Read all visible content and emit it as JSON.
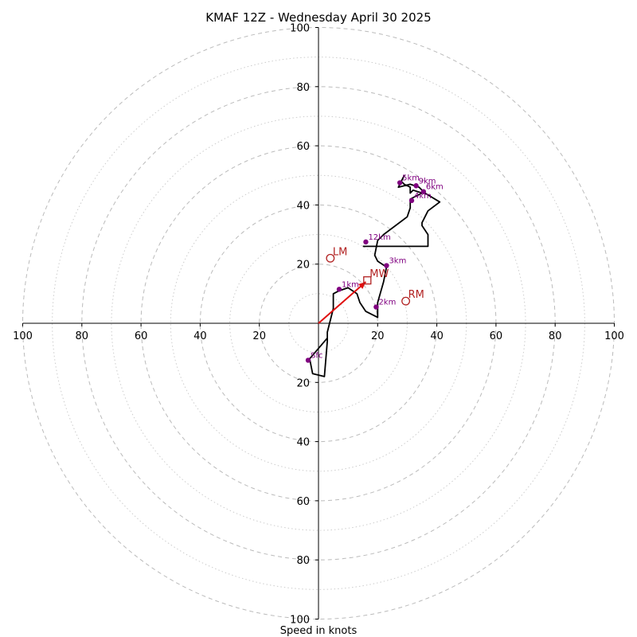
{
  "chart_data": {
    "type": "hodograph",
    "title": "KMAF 12Z - Wednesday April 30 2025",
    "xlabel": "Speed in knots",
    "units": "knots",
    "range": [
      -100,
      100
    ],
    "rings_major": [
      20,
      40,
      60,
      80,
      100
    ],
    "rings_minor": [
      10,
      30,
      50,
      70,
      90
    ],
    "x_tick_labels": [
      "100",
      "80",
      "60",
      "40",
      "20",
      "20",
      "40",
      "60",
      "80",
      "100"
    ],
    "y_tick_labels": [
      "100",
      "80",
      "60",
      "40",
      "20",
      "20",
      "40",
      "60",
      "80",
      "100"
    ],
    "trace": [
      [
        3,
        -5
      ],
      [
        -3,
        -12
      ],
      [
        -2,
        -17
      ],
      [
        2,
        -18
      ],
      [
        3,
        -6
      ],
      [
        3,
        -3
      ],
      [
        5,
        5
      ],
      [
        5,
        10
      ],
      [
        7,
        11
      ],
      [
        10,
        12
      ],
      [
        13,
        10
      ],
      [
        14,
        7
      ],
      [
        16,
        4
      ],
      [
        20,
        2
      ],
      [
        20,
        4
      ],
      [
        20,
        7
      ],
      [
        22,
        14
      ],
      [
        23,
        19
      ],
      [
        20,
        21
      ],
      [
        19,
        23
      ],
      [
        20,
        28
      ],
      [
        22,
        30
      ],
      [
        30,
        36
      ],
      [
        31,
        39
      ],
      [
        31,
        42
      ],
      [
        35,
        44
      ],
      [
        32,
        45
      ],
      [
        31,
        44
      ],
      [
        31,
        46
      ],
      [
        29,
        47
      ],
      [
        28,
        48
      ],
      [
        29,
        50
      ],
      [
        27,
        46
      ],
      [
        31,
        47
      ],
      [
        34,
        46
      ],
      [
        36,
        44
      ],
      [
        41,
        41
      ],
      [
        37,
        38
      ],
      [
        35,
        34
      ],
      [
        35,
        33
      ],
      [
        37,
        30
      ],
      [
        37,
        26
      ],
      [
        36,
        26
      ],
      [
        30,
        26
      ],
      [
        15,
        26
      ]
    ],
    "height_markers": [
      {
        "label": "Sfc",
        "u": -3.5,
        "v": -12.5
      },
      {
        "label": "1km",
        "u": 7,
        "v": 11.5
      },
      {
        "label": "2km",
        "u": 19.5,
        "v": 5.5
      },
      {
        "label": "3km",
        "u": 23,
        "v": 19.5
      },
      {
        "label": "4km",
        "u": 31.5,
        "v": 41.5
      },
      {
        "label": "5km",
        "u": 27.5,
        "v": 47.5
      },
      {
        "label": "6km",
        "u": 35.5,
        "v": 44.5
      },
      {
        "label": "9km",
        "u": 33,
        "v": 46.5
      },
      {
        "label": "12km",
        "u": 16,
        "v": 27.5
      }
    ],
    "storm_motion": {
      "rm": {
        "label": "RM",
        "u": 29.5,
        "v": 7.5
      },
      "lm": {
        "label": "LM",
        "u": 4,
        "v": 22
      },
      "mw": {
        "label": "MW",
        "u": 16.5,
        "v": 14.5
      }
    },
    "shear_vector": {
      "from": [
        0,
        0
      ],
      "to": [
        16,
        14
      ]
    },
    "colors": {
      "trace": "#000000",
      "markers": "#800080",
      "storm_motion": "#b22222",
      "shear_vector": "#e01010",
      "ring_major": "#bbbbbb",
      "ring_minor": "#cccccc",
      "axis": "#000000"
    }
  }
}
